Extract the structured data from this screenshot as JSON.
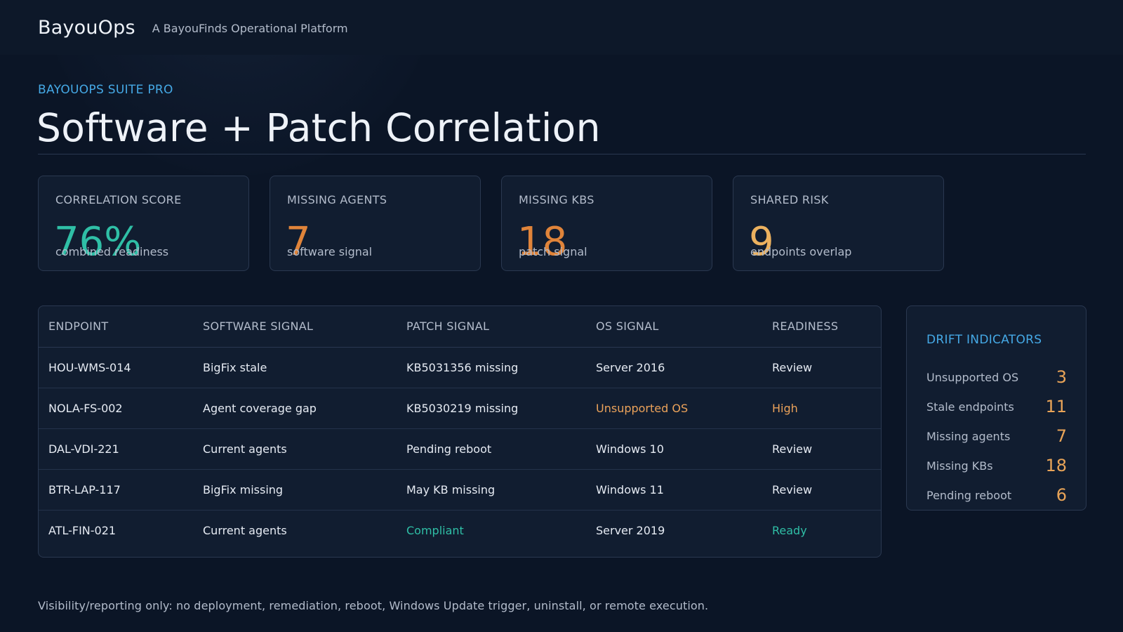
{
  "app": {
    "brand": "BayouOps",
    "tagline": "A BayouFinds Operational Platform"
  },
  "header": {
    "kicker": "BAYOUOPS SUITE PRO",
    "title": "Software + Patch Correlation"
  },
  "metrics": [
    {
      "label": "CORRELATION SCORE",
      "value": "76%",
      "sub": "combined readiness",
      "color": "#2fbfa6"
    },
    {
      "label": "MISSING AGENTS",
      "value": "7",
      "sub": "software signal",
      "color": "#e0843a"
    },
    {
      "label": "MISSING KBS",
      "value": "18",
      "sub": "patch signal",
      "color": "#e0843a"
    },
    {
      "label": "SHARED RISK",
      "value": "9",
      "sub": "endpoints overlap",
      "color": "#ecb15f"
    }
  ],
  "table": {
    "columns": [
      "ENDPOINT",
      "SOFTWARE SIGNAL",
      "PATCH SIGNAL",
      "OS SIGNAL",
      "READINESS"
    ],
    "rows": [
      {
        "endpoint": "HOU-WMS-014",
        "software": "BigFix stale",
        "patch": "KB5031356 missing",
        "os": "Server 2016",
        "readiness": "Review"
      },
      {
        "endpoint": "NOLA-FS-002",
        "software": "Agent coverage gap",
        "patch": "KB5030219 missing",
        "os": "Unsupported OS",
        "readiness": "High"
      },
      {
        "endpoint": "DAL-VDI-221",
        "software": "Current agents",
        "patch": "Pending reboot",
        "os": "Windows 10",
        "readiness": "Review"
      },
      {
        "endpoint": "BTR-LAP-117",
        "software": "BigFix missing",
        "patch": "May KB missing",
        "os": "Windows 11",
        "readiness": "Review"
      },
      {
        "endpoint": "ATL-FIN-021",
        "software": "Current agents",
        "patch": "Compliant",
        "os": "Server 2019",
        "readiness": "Ready"
      }
    ]
  },
  "drift": {
    "title": "DRIFT INDICATORS",
    "items": [
      {
        "label": "Unsupported OS",
        "value": "3"
      },
      {
        "label": "Stale endpoints",
        "value": "11"
      },
      {
        "label": "Missing agents",
        "value": "7"
      },
      {
        "label": "Missing KBs",
        "value": "18"
      },
      {
        "label": "Pending reboot",
        "value": "6"
      }
    ]
  },
  "footer": {
    "note": "Visibility/reporting only: no deployment, remediation, reboot, Windows Update trigger, uninstall, or remote execution."
  },
  "colors": {
    "accent": "#45a9e6",
    "ok": "#2fbfa6",
    "warn": "#eba25a",
    "background": "#0b1526"
  }
}
